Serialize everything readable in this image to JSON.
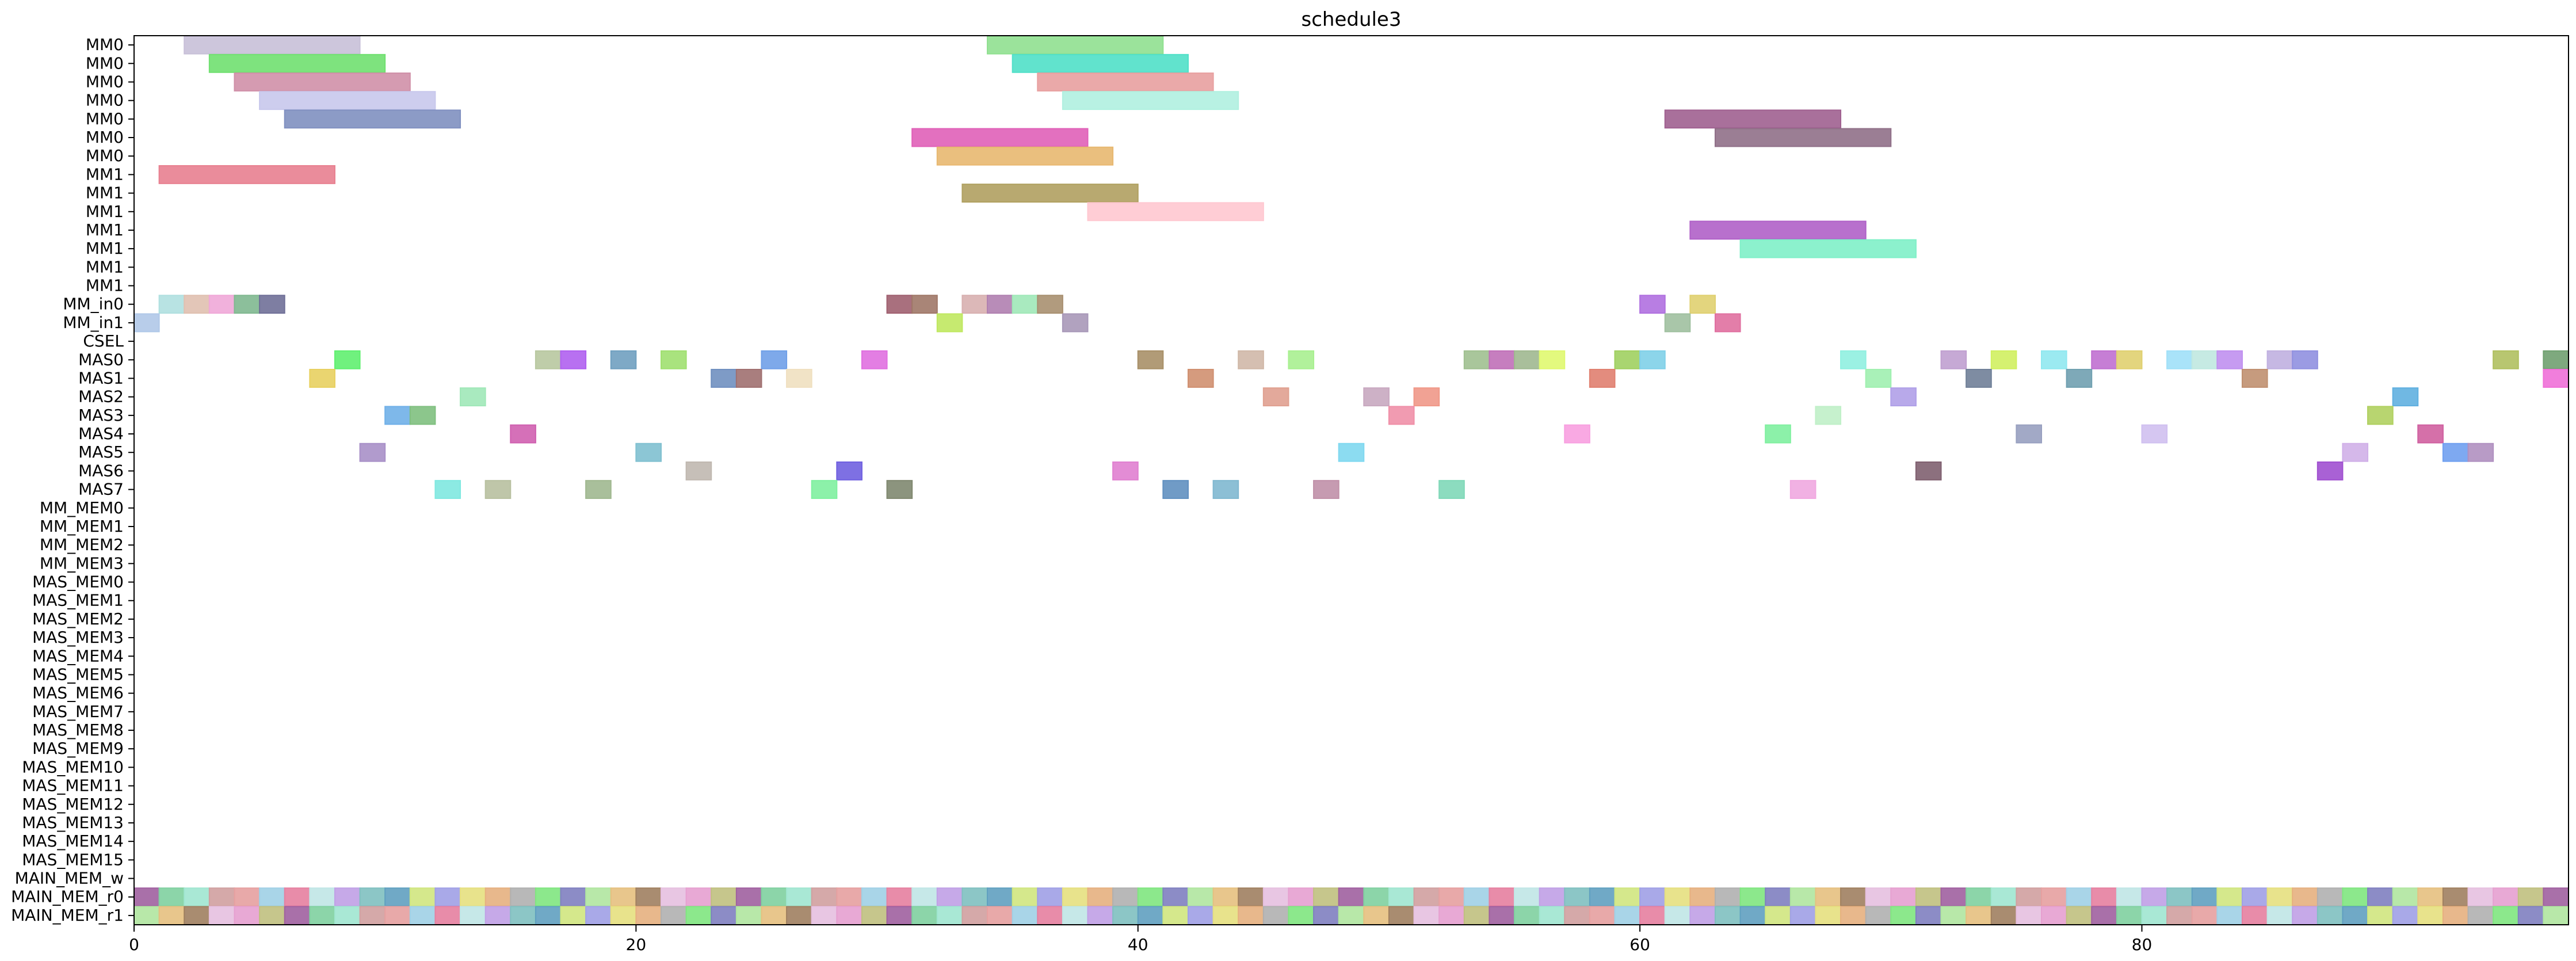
{
  "chart_data": {
    "type": "bar",
    "title": "schedule3",
    "xlabel": "",
    "ylabel": "",
    "xlim": [
      0,
      97
    ],
    "grid": false,
    "legend": "none",
    "xticks": [
      0,
      20,
      40,
      60,
      80
    ],
    "categories": [
      "MM0",
      "MM0",
      "MM0",
      "MM0",
      "MM0",
      "MM0",
      "MM0",
      "MM1",
      "MM1",
      "MM1",
      "MM1",
      "MM1",
      "MM1",
      "MM1",
      "MM_in0",
      "MM_in1",
      "CSEL",
      "MAS0",
      "MAS1",
      "MAS2",
      "MAS3",
      "MAS4",
      "MAS5",
      "MAS6",
      "MAS7",
      "MM_MEM0",
      "MM_MEM1",
      "MM_MEM2",
      "MM_MEM3",
      "MAS_MEM0",
      "MAS_MEM1",
      "MAS_MEM2",
      "MAS_MEM3",
      "MAS_MEM4",
      "MAS_MEM5",
      "MAS_MEM6",
      "MAS_MEM7",
      "MAS_MEM8",
      "MAS_MEM9",
      "MAS_MEM10",
      "MAS_MEM11",
      "MAS_MEM12",
      "MAS_MEM13",
      "MAS_MEM14",
      "MAS_MEM15",
      "MAIN_MEM_w",
      "MAIN_MEM_r0",
      "MAIN_MEM_r1"
    ],
    "palette": [
      "#e6a0a0",
      "#a0d0e6",
      "#b0e6a0",
      "#e6c080",
      "#c0a0e6",
      "#80c0c0",
      "#e6a0d0",
      "#c0c080",
      "#a0a0e6",
      "#e6e080",
      "#a0e6d0",
      "#d0a0a0",
      "#80e680",
      "#8080c0",
      "#e680a0",
      "#c0e6e6",
      "#a08060",
      "#e6c0e0",
      "#60a0c0",
      "#d0e680",
      "#a060a0",
      "#80d0a0",
      "#e6b080",
      "#b0b0b0"
    ],
    "series": [
      {
        "values": [
          {
            "row": 0,
            "start": 2,
            "end": 9,
            "color": "#c8c0d8"
          },
          {
            "row": 0,
            "start": 34,
            "end": 41,
            "color": "#90e090"
          },
          {
            "row": 1,
            "start": 3,
            "end": 10,
            "color": "#70e070"
          },
          {
            "row": 1,
            "start": 35,
            "end": 42,
            "color": "#50e0c8"
          },
          {
            "row": 2,
            "start": 4,
            "end": 11,
            "color": "#d090a8"
          },
          {
            "row": 2,
            "start": 36,
            "end": 43,
            "color": "#e8a0a0"
          },
          {
            "row": 3,
            "start": 5,
            "end": 12,
            "color": "#c8c8ec"
          },
          {
            "row": 3,
            "start": 37,
            "end": 44,
            "color": "#b0f0e0"
          },
          {
            "row": 4,
            "start": 6,
            "end": 13,
            "color": "#8090c0"
          },
          {
            "row": 4,
            "start": 61,
            "end": 68,
            "color": "#a06090"
          },
          {
            "row": 5,
            "start": 31,
            "end": 38,
            "color": "#e060b8"
          },
          {
            "row": 5,
            "start": 63,
            "end": 70,
            "color": "#907088"
          },
          {
            "row": 6,
            "start": 32,
            "end": 39,
            "color": "#e8b870"
          },
          {
            "row": 7,
            "start": 1,
            "end": 8,
            "color": "#e88090"
          },
          {
            "row": 8,
            "start": 33,
            "end": 40,
            "color": "#b0a060"
          },
          {
            "row": 9,
            "start": 38,
            "end": 45,
            "color": "#ffc8d0"
          },
          {
            "row": 10,
            "start": 62,
            "end": 69,
            "color": "#b060c8"
          },
          {
            "row": 11,
            "start": 64,
            "end": 71,
            "color": "#80f0c8"
          },
          {
            "row": 14,
            "start": 1,
            "end": 2,
            "color": "#b0e0e0"
          },
          {
            "row": 14,
            "start": 2,
            "end": 3,
            "color": "#e0c0b0"
          },
          {
            "row": 14,
            "start": 3,
            "end": 4,
            "color": "#f0a8d8"
          },
          {
            "row": 14,
            "start": 4,
            "end": 5,
            "color": "#80b890"
          },
          {
            "row": 14,
            "start": 5,
            "end": 6,
            "color": "#707098"
          },
          {
            "row": 14,
            "start": 30,
            "end": 31,
            "color": "#a06070"
          },
          {
            "row": 14,
            "start": 31,
            "end": 32,
            "color": "#a07868"
          },
          {
            "row": 14,
            "start": 33,
            "end": 34,
            "color": "#d8b0b0"
          },
          {
            "row": 14,
            "start": 34,
            "end": 35,
            "color": "#b080b0"
          },
          {
            "row": 14,
            "start": 35,
            "end": 36,
            "color": "#a0e8b8"
          },
          {
            "row": 14,
            "start": 36,
            "end": 37,
            "color": "#a89070"
          },
          {
            "row": 14,
            "start": 60,
            "end": 61,
            "color": "#b070e0"
          },
          {
            "row": 14,
            "start": 62,
            "end": 63,
            "color": "#e0d070"
          },
          {
            "row": 15,
            "start": 0,
            "end": 1,
            "color": "#b0c8e8"
          },
          {
            "row": 15,
            "start": 32,
            "end": 33,
            "color": "#c0e860"
          },
          {
            "row": 15,
            "start": 37,
            "end": 38,
            "color": "#a898b8"
          },
          {
            "row": 15,
            "start": 61,
            "end": 62,
            "color": "#a0c0a0"
          },
          {
            "row": 15,
            "start": 63,
            "end": 64,
            "color": "#e070a0"
          },
          {
            "row": 17,
            "start": 8,
            "end": 9,
            "color": "#60f070"
          },
          {
            "row": 17,
            "start": 16,
            "end": 17,
            "color": "#b8c8a0"
          },
          {
            "row": 17,
            "start": 17,
            "end": 18,
            "color": "#b060f0"
          },
          {
            "row": 17,
            "start": 19,
            "end": 20,
            "color": "#70a0c0"
          },
          {
            "row": 17,
            "start": 21,
            "end": 22,
            "color": "#a0e070"
          },
          {
            "row": 17,
            "start": 25,
            "end": 26,
            "color": "#70a0e8"
          },
          {
            "row": 17,
            "start": 29,
            "end": 30,
            "color": "#e070e0"
          },
          {
            "row": 17,
            "start": 40,
            "end": 41,
            "color": "#a89068"
          },
          {
            "row": 17,
            "start": 44,
            "end": 45,
            "color": "#d0b8a8"
          },
          {
            "row": 17,
            "start": 46,
            "end": 47,
            "color": "#a8f090"
          },
          {
            "row": 17,
            "start": 53,
            "end": 54,
            "color": "#a0c090"
          },
          {
            "row": 17,
            "start": 54,
            "end": 55,
            "color": "#c070b8"
          },
          {
            "row": 17,
            "start": 55,
            "end": 56,
            "color": "#a0b890"
          },
          {
            "row": 17,
            "start": 56,
            "end": 57,
            "color": "#e0f870"
          },
          {
            "row": 17,
            "start": 59,
            "end": 60,
            "color": "#a0d060"
          },
          {
            "row": 17,
            "start": 60,
            "end": 61,
            "color": "#80d0e8"
          },
          {
            "row": 17,
            "start": 68,
            "end": 69,
            "color": "#90f0e0"
          },
          {
            "row": 17,
            "start": 72,
            "end": 73,
            "color": "#c0a0d0"
          },
          {
            "row": 17,
            "start": 74,
            "end": 75,
            "color": "#d0f060"
          },
          {
            "row": 17,
            "start": 76,
            "end": 77,
            "color": "#90e8f0"
          },
          {
            "row": 17,
            "start": 78,
            "end": 79,
            "color": "#c070d0"
          },
          {
            "row": 17,
            "start": 79,
            "end": 80,
            "color": "#e0d070"
          },
          {
            "row": 17,
            "start": 81,
            "end": 82,
            "color": "#a0e0f8"
          },
          {
            "row": 17,
            "start": 82,
            "end": 83,
            "color": "#c0e8e0"
          },
          {
            "row": 17,
            "start": 83,
            "end": 84,
            "color": "#c090f0"
          },
          {
            "row": 17,
            "start": 85,
            "end": 86,
            "color": "#c0b0e0"
          },
          {
            "row": 17,
            "start": 86,
            "end": 87,
            "color": "#9090e0"
          },
          {
            "row": 17,
            "start": 94,
            "end": 95,
            "color": "#b0c060"
          },
          {
            "row": 17,
            "start": 96,
            "end": 97,
            "color": "#70a070"
          },
          {
            "row": 18,
            "start": 7,
            "end": 8,
            "color": "#e8d060"
          },
          {
            "row": 18,
            "start": 23,
            "end": 24,
            "color": "#7090c0"
          },
          {
            "row": 18,
            "start": 24,
            "end": 25,
            "color": "#a07070"
          },
          {
            "row": 18,
            "start": 26,
            "end": 27,
            "color": "#f0e0c0"
          },
          {
            "row": 18,
            "start": 42,
            "end": 43,
            "color": "#d09070"
          },
          {
            "row": 18,
            "start": 58,
            "end": 59,
            "color": "#e08070"
          },
          {
            "row": 18,
            "start": 69,
            "end": 70,
            "color": "#a0f0b0"
          },
          {
            "row": 18,
            "start": 73,
            "end": 74,
            "color": "#708098"
          },
          {
            "row": 18,
            "start": 77,
            "end": 78,
            "color": "#70a0b0"
          },
          {
            "row": 18,
            "start": 84,
            "end": 85,
            "color": "#c09070"
          },
          {
            "row": 18,
            "start": 96,
            "end": 97,
            "color": "#f070d8"
          },
          {
            "row": 19,
            "start": 13,
            "end": 14,
            "color": "#a0e8b8"
          },
          {
            "row": 19,
            "start": 45,
            "end": 46,
            "color": "#e0a090"
          },
          {
            "row": 19,
            "start": 49,
            "end": 50,
            "color": "#c8a8c0"
          },
          {
            "row": 19,
            "start": 51,
            "end": 52,
            "color": "#f09888"
          },
          {
            "row": 19,
            "start": 70,
            "end": 71,
            "color": "#b0a0e8"
          },
          {
            "row": 19,
            "start": 90,
            "end": 91,
            "color": "#60b0e0"
          },
          {
            "row": 20,
            "start": 10,
            "end": 11,
            "color": "#70b0e8"
          },
          {
            "row": 20,
            "start": 11,
            "end": 12,
            "color": "#80c080"
          },
          {
            "row": 20,
            "start": 50,
            "end": 51,
            "color": "#f090a8"
          },
          {
            "row": 20,
            "start": 67,
            "end": 68,
            "color": "#c0f0c8"
          },
          {
            "row": 20,
            "start": 89,
            "end": 90,
            "color": "#b0d060"
          },
          {
            "row": 21,
            "start": 15,
            "end": 16,
            "color": "#d060b0"
          },
          {
            "row": 21,
            "start": 57,
            "end": 58,
            "color": "#f8a0e0"
          },
          {
            "row": 21,
            "start": 65,
            "end": 66,
            "color": "#80f0a0"
          },
          {
            "row": 21,
            "start": 75,
            "end": 76,
            "color": "#98a0c0"
          },
          {
            "row": 21,
            "start": 80,
            "end": 81,
            "color": "#d0c0f0"
          },
          {
            "row": 21,
            "start": 91,
            "end": 92,
            "color": "#d060a0"
          },
          {
            "row": 22,
            "start": 9,
            "end": 10,
            "color": "#a890c8"
          },
          {
            "row": 22,
            "start": 20,
            "end": 21,
            "color": "#80c0d0"
          },
          {
            "row": 22,
            "start": 48,
            "end": 49,
            "color": "#80d8f0"
          },
          {
            "row": 22,
            "start": 88,
            "end": 89,
            "color": "#d0b0e8"
          },
          {
            "row": 22,
            "start": 92,
            "end": 93,
            "color": "#70a0f0"
          },
          {
            "row": 22,
            "start": 93,
            "end": 94,
            "color": "#b090c0"
          },
          {
            "row": 23,
            "start": 22,
            "end": 23,
            "color": "#c0b8b0"
          },
          {
            "row": 23,
            "start": 28,
            "end": 29,
            "color": "#7060e0"
          },
          {
            "row": 23,
            "start": 39,
            "end": 40,
            "color": "#e080d0"
          },
          {
            "row": 23,
            "start": 71,
            "end": 72,
            "color": "#806070"
          },
          {
            "row": 23,
            "start": 87,
            "end": 88,
            "color": "#a050d0"
          },
          {
            "row": 24,
            "start": 12,
            "end": 13,
            "color": "#80e8e0"
          },
          {
            "row": 24,
            "start": 14,
            "end": 15,
            "color": "#b8c0a0"
          },
          {
            "row": 24,
            "start": 18,
            "end": 19,
            "color": "#a0b890"
          },
          {
            "row": 24,
            "start": 27,
            "end": 28,
            "color": "#80f0a0"
          },
          {
            "row": 24,
            "start": 30,
            "end": 31,
            "color": "#808870"
          },
          {
            "row": 24,
            "start": 41,
            "end": 42,
            "color": "#6090c0"
          },
          {
            "row": 24,
            "start": 43,
            "end": 44,
            "color": "#80b8d0"
          },
          {
            "row": 24,
            "start": 47,
            "end": 48,
            "color": "#c090a8"
          },
          {
            "row": 24,
            "start": 52,
            "end": 53,
            "color": "#80d8b8"
          },
          {
            "row": 24,
            "start": 66,
            "end": 67,
            "color": "#f0a8e0"
          }
        ]
      }
    ],
    "mem_rows": [
      {
        "row": 46,
        "seed": 7
      },
      {
        "row": 47,
        "seed": 13
      }
    ],
    "mem_span": [
      0,
      97
    ]
  }
}
